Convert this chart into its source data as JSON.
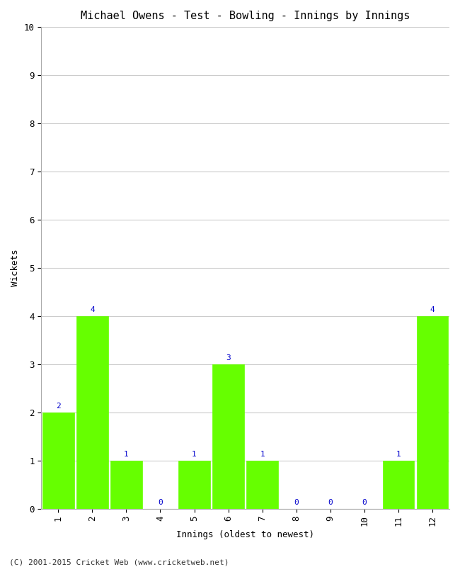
{
  "title": "Michael Owens - Test - Bowling - Innings by Innings",
  "xlabel": "Innings (oldest to newest)",
  "ylabel": "Wickets",
  "innings": [
    1,
    2,
    3,
    4,
    5,
    6,
    7,
    8,
    9,
    10,
    11,
    12
  ],
  "wickets": [
    2,
    4,
    1,
    0,
    1,
    3,
    1,
    0,
    0,
    0,
    1,
    4
  ],
  "bar_color": "#66ff00",
  "bar_edge_color": "#66ff00",
  "label_color": "#0000cc",
  "ylim": [
    0,
    10
  ],
  "yticks": [
    0,
    1,
    2,
    3,
    4,
    5,
    6,
    7,
    8,
    9,
    10
  ],
  "background_color": "#ffffff",
  "grid_color": "#cccccc",
  "title_fontsize": 11,
  "axis_label_fontsize": 9,
  "tick_fontsize": 9,
  "bar_label_fontsize": 8,
  "footer": "(C) 2001-2015 Cricket Web (www.cricketweb.net)"
}
